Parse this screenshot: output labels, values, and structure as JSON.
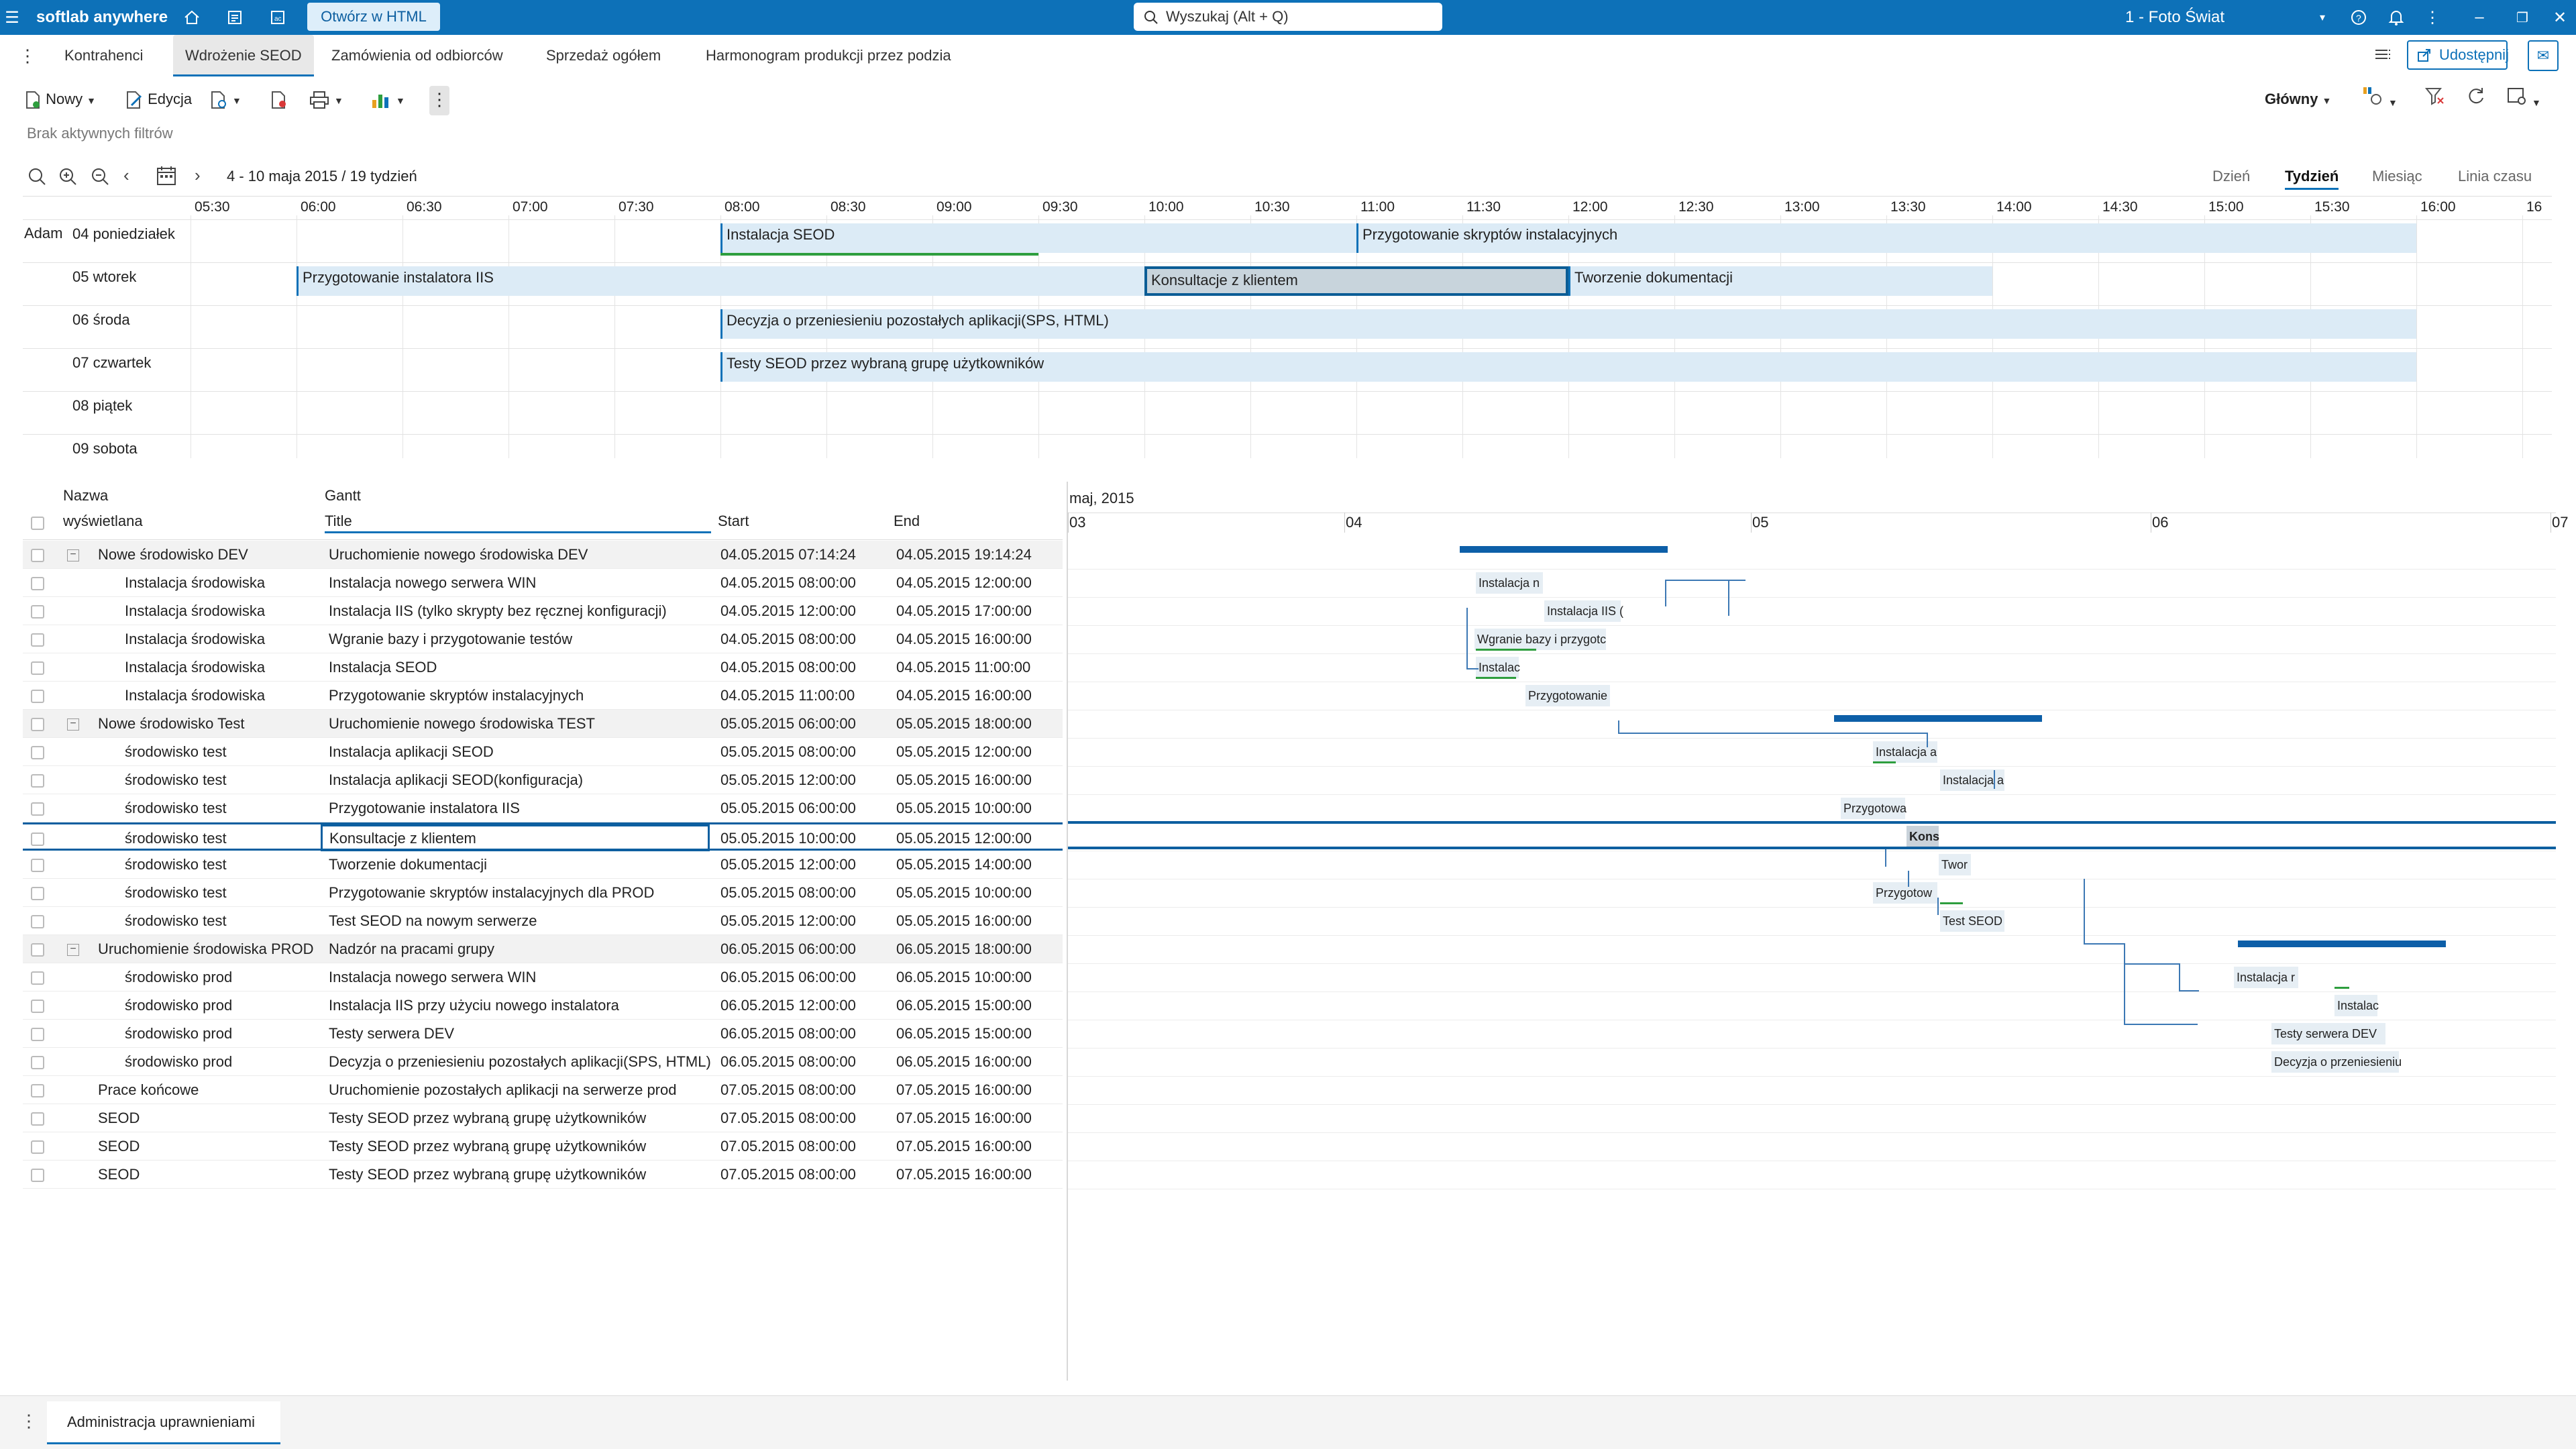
{
  "app": {
    "name": "softlab anywhere",
    "open_html": "Otwórz w HTML",
    "search_placeholder": "Wyszukaj (Alt + Q)",
    "company": "1 - Foto Świat"
  },
  "tabs": [
    "Kontrahenci",
    "Wdrożenie SEOD",
    "Zamówienia od odbiorców",
    "Sprzedaż ogółem",
    "Harmonogram produkcji przez podzia"
  ],
  "share_label": "Udostępnij",
  "toolbar": {
    "new": "Nowy",
    "edit": "Edycja",
    "view": "Główny"
  },
  "filters": "Brak aktywnych filtrów",
  "scheduler": {
    "range": "4 - 10 maja 2015 / 19 tydzień",
    "views": [
      "Dzień",
      "Tydzień",
      "Miesiąc",
      "Linia czasu"
    ],
    "times": [
      "05:30",
      "06:00",
      "06:30",
      "07:00",
      "07:30",
      "08:00",
      "08:30",
      "09:00",
      "09:30",
      "10:00",
      "10:30",
      "11:00",
      "11:30",
      "12:00",
      "12:30",
      "13:00",
      "13:30",
      "14:00",
      "14:30",
      "15:00",
      "15:30",
      "16:00",
      "16"
    ],
    "resource": "Adam",
    "days": [
      "04 poniedziałek",
      "05 wtorek",
      "06 środa",
      "07 czwartek",
      "08 piątek",
      "09 sobota"
    ],
    "events": [
      {
        "day": 0,
        "start": "08:00",
        "end": "11:00",
        "title": "Instalacja SEOD"
      },
      {
        "day": 0,
        "start": "11:00",
        "end": "16:00",
        "title": "Przygotowanie skryptów instalacyjnych"
      },
      {
        "day": 1,
        "start": "06:00",
        "end": "10:00",
        "title": "Przygotowanie instalatora IIS"
      },
      {
        "day": 1,
        "start": "10:00",
        "end": "12:00",
        "title": "Konsultacje z klientem"
      },
      {
        "day": 1,
        "start": "12:00",
        "end": "14:00",
        "title": "Tworzenie dokumentacji"
      },
      {
        "day": 2,
        "start": "08:00",
        "end": "16:00",
        "title": "Decyzja o przeniesieniu pozostałych aplikacji(SPS, HTML)"
      },
      {
        "day": 3,
        "start": "08:00",
        "end": "16:00",
        "title": "Testy SEOD przez wybraną grupę użytkowników"
      }
    ]
  },
  "grid": {
    "headers": {
      "name1": "Nazwa",
      "name2": "wyświetlana",
      "gantt": "Gantt",
      "title": "Title",
      "start": "Start",
      "end": "End"
    },
    "rows": [
      {
        "name": "Nowe środowisko DEV",
        "title": "Uruchomienie nowego środowiska DEV",
        "start": "04.05.2015 07:14:24",
        "end": "04.05.2015 19:14:24",
        "group": true
      },
      {
        "name": "Instalacja środowiska",
        "title": "Instalacja nowego serwera WIN",
        "start": "04.05.2015 08:00:00",
        "end": "04.05.2015 12:00:00"
      },
      {
        "name": "Instalacja środowiska",
        "title": "Instalacja IIS (tylko skrypty bez ręcznej konfiguracji)",
        "start": "04.05.2015 12:00:00",
        "end": "04.05.2015 17:00:00"
      },
      {
        "name": "Instalacja środowiska",
        "title": "Wgranie bazy i przygotowanie testów",
        "start": "04.05.2015 08:00:00",
        "end": "04.05.2015 16:00:00"
      },
      {
        "name": "Instalacja środowiska",
        "title": "Instalacja SEOD",
        "start": "04.05.2015 08:00:00",
        "end": "04.05.2015 11:00:00"
      },
      {
        "name": "Instalacja środowiska",
        "title": "Przygotowanie skryptów instalacyjnych",
        "start": "04.05.2015 11:00:00",
        "end": "04.05.2015 16:00:00"
      },
      {
        "name": "Nowe środowisko Test",
        "title": "Uruchomienie nowego środowiska TEST",
        "start": "05.05.2015 06:00:00",
        "end": "05.05.2015 18:00:00",
        "group": true
      },
      {
        "name": "środowisko test",
        "title": "Instalacja aplikacji SEOD",
        "start": "05.05.2015 08:00:00",
        "end": "05.05.2015 12:00:00"
      },
      {
        "name": "środowisko test",
        "title": "Instalacja aplikacji SEOD(konfiguracja)",
        "start": "05.05.2015 12:00:00",
        "end": "05.05.2015 16:00:00"
      },
      {
        "name": "środowisko test",
        "title": "Przygotowanie instalatora IIS",
        "start": "05.05.2015 06:00:00",
        "end": "05.05.2015 10:00:00"
      },
      {
        "name": "środowisko test",
        "title": "Konsultacje z klientem",
        "start": "05.05.2015 10:00:00",
        "end": "05.05.2015 12:00:00",
        "selected": true
      },
      {
        "name": "środowisko test",
        "title": "Tworzenie dokumentacji",
        "start": "05.05.2015 12:00:00",
        "end": "05.05.2015 14:00:00"
      },
      {
        "name": "środowisko test",
        "title": "Przygotowanie skryptów instalacyjnych dla PROD",
        "start": "05.05.2015 08:00:00",
        "end": "05.05.2015 10:00:00"
      },
      {
        "name": "środowisko test",
        "title": "Test SEOD na nowym serwerze",
        "start": "05.05.2015 12:00:00",
        "end": "05.05.2015 16:00:00"
      },
      {
        "name": "Uruchomienie środowiska PROD",
        "title": "Nadzór na pracami grupy",
        "start": "06.05.2015 06:00:00",
        "end": "06.05.2015 18:00:00",
        "group": true
      },
      {
        "name": "środowisko prod",
        "title": "Instalacja nowego serwera WIN",
        "start": "06.05.2015 06:00:00",
        "end": "06.05.2015 10:00:00"
      },
      {
        "name": "środowisko prod",
        "title": "Instalacja IIS przy użyciu nowego instalatora",
        "start": "06.05.2015 12:00:00",
        "end": "06.05.2015 15:00:00"
      },
      {
        "name": "środowisko prod",
        "title": "Testy serwera DEV",
        "start": "06.05.2015 08:00:00",
        "end": "06.05.2015 15:00:00"
      },
      {
        "name": "środowisko prod",
        "title": "Decyzja o przeniesieniu pozostałych aplikacji(SPS, HTML)",
        "start": "06.05.2015 08:00:00",
        "end": "06.05.2015 16:00:00"
      },
      {
        "name": "Prace końcowe",
        "title": "Uruchomienie pozostałych aplikacji na serwerze prod",
        "start": "07.05.2015 08:00:00",
        "end": "07.05.2015 16:00:00",
        "flat": true
      },
      {
        "name": "SEOD",
        "title": "Testy SEOD przez wybraną grupę użytkowników",
        "start": "07.05.2015 08:00:00",
        "end": "07.05.2015 16:00:00",
        "flat": true
      },
      {
        "name": "SEOD",
        "title": "Testy SEOD przez wybraną grupę użytkowników",
        "start": "07.05.2015 08:00:00",
        "end": "07.05.2015 16:00:00",
        "flat": true
      },
      {
        "name": "SEOD",
        "title": "Testy SEOD przez wybraną grupę użytkowników",
        "start": "07.05.2015 08:00:00",
        "end": "07.05.2015 16:00:00",
        "flat": true
      }
    ]
  },
  "gantt": {
    "month": "maj, 2015",
    "days": [
      "03",
      "04",
      "05",
      "06",
      "07"
    ],
    "bars": [
      {
        "row": 1,
        "label": "Instalacja n"
      },
      {
        "row": 2,
        "label": "Instalacja IIS ("
      },
      {
        "row": 3,
        "label": "Wgranie bazy i przygotc"
      },
      {
        "row": 4,
        "label": "Instalac"
      },
      {
        "row": 5,
        "label": "Przygotowanie"
      },
      {
        "row": 7,
        "label": "Instalacja a"
      },
      {
        "row": 8,
        "label": "Instalacja a"
      },
      {
        "row": 9,
        "label": "Przygotowa"
      },
      {
        "row": 10,
        "label": "Kons"
      },
      {
        "row": 11,
        "label": "Twor"
      },
      {
        "row": 12,
        "label": "Przygotow"
      },
      {
        "row": 13,
        "label": "Test SEOD"
      },
      {
        "row": 15,
        "label": "Instalacja r"
      },
      {
        "row": 16,
        "label": "Instalac"
      },
      {
        "row": 17,
        "label": "Testy serwera DEV"
      },
      {
        "row": 18,
        "label": "Decyzja o przeniesieniu"
      }
    ]
  },
  "bottom_tab": "Administracja uprawnieniami"
}
